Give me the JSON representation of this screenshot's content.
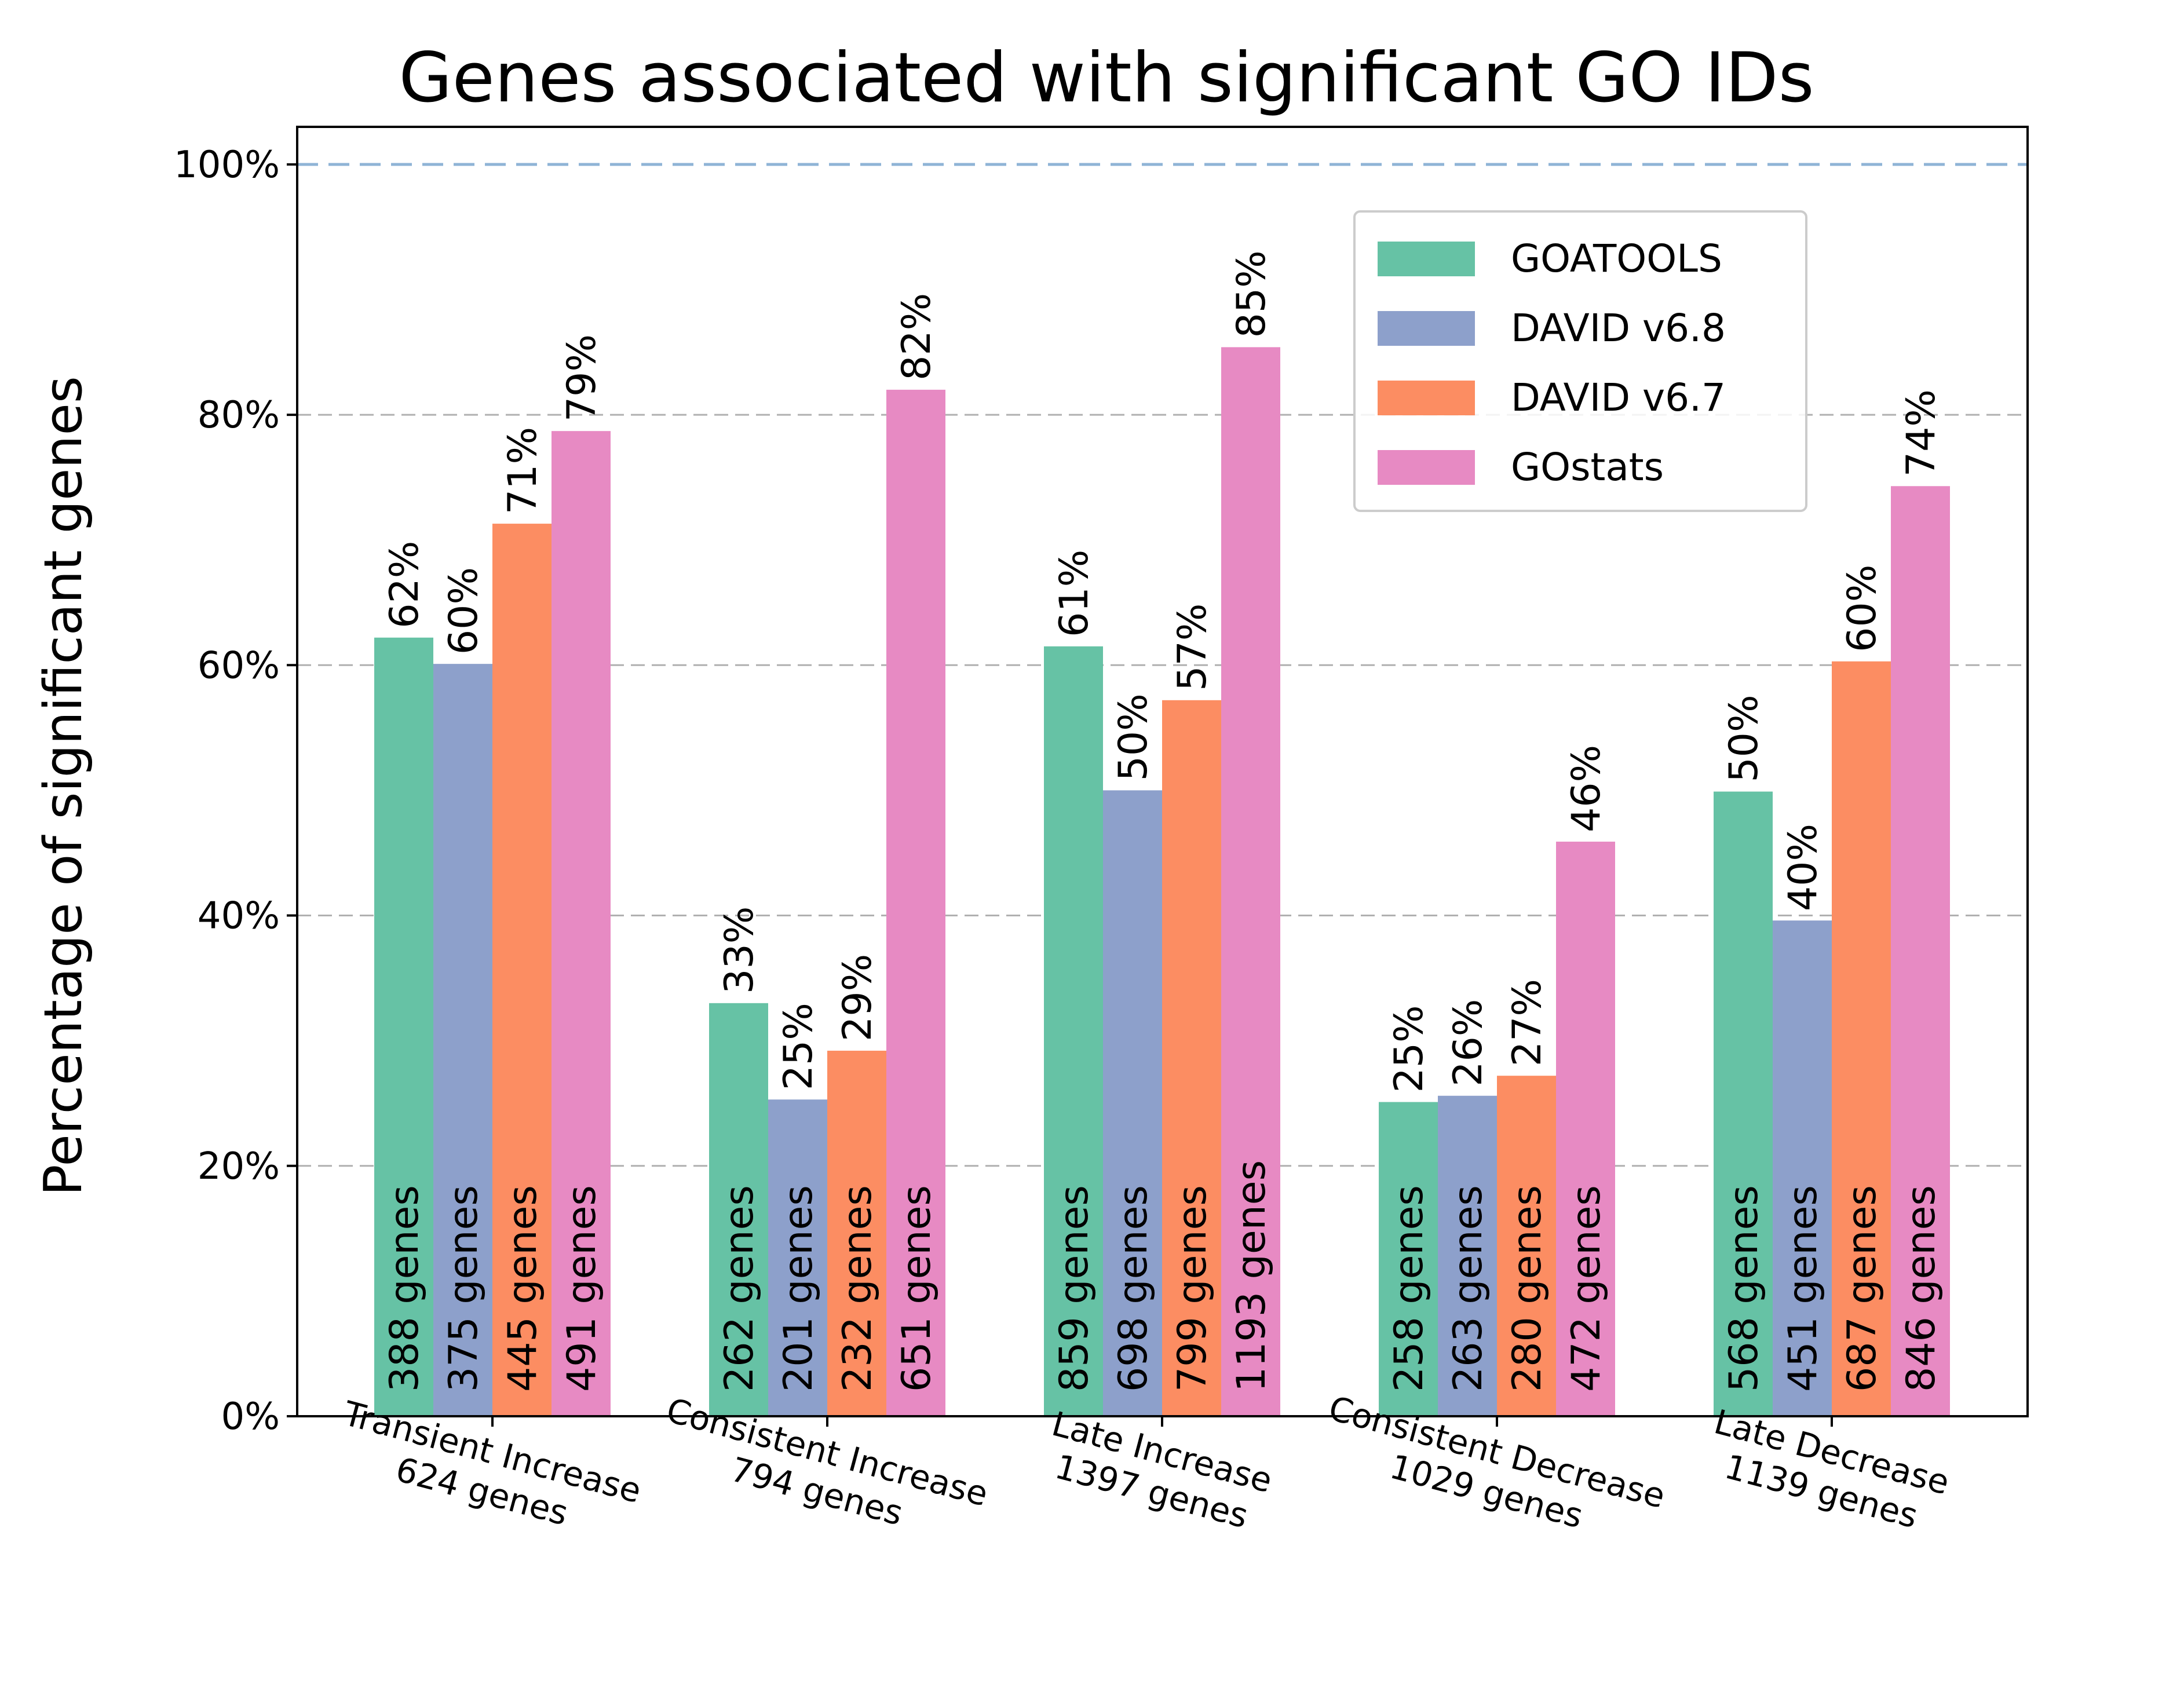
{
  "chart_data": {
    "type": "bar",
    "title": "Genes associated with significant GO IDs",
    "xlabel": "",
    "ylabel": "Percentage of significant genes",
    "ylim": [
      0,
      103
    ],
    "yticks": [
      0,
      20,
      40,
      60,
      80,
      100
    ],
    "ytick_labels": [
      "0%",
      "20%",
      "40%",
      "60%",
      "80%",
      "100%"
    ],
    "reference_line": 100,
    "grid": "horizontal dashed",
    "legend_position": "upper right",
    "categories": [
      {
        "line1": "Transient Increase",
        "line2": "624 genes"
      },
      {
        "line1": "Consistent Increase",
        "line2": "794 genes"
      },
      {
        "line1": "Late Increase",
        "line2": "1397 genes"
      },
      {
        "line1": "Consistent Decrease",
        "line2": "1029 genes"
      },
      {
        "line1": "Late Decrease",
        "line2": "1139 genes"
      }
    ],
    "series": [
      {
        "name": "GOATOOLS",
        "color": "#66c2a5",
        "values": [
          62.2,
          33.0,
          61.5,
          25.1,
          49.9
        ],
        "labels": [
          "62%",
          "33%",
          "61%",
          "25%",
          "50%"
        ],
        "genes": [
          "388 genes",
          "262 genes",
          "859 genes",
          "258 genes",
          "568 genes"
        ]
      },
      {
        "name": "DAVID v6.8",
        "color": "#8da0cb",
        "values": [
          60.1,
          25.3,
          50.0,
          25.6,
          39.6
        ],
        "labels": [
          "60%",
          "25%",
          "50%",
          "26%",
          "40%"
        ],
        "genes": [
          "375 genes",
          "201 genes",
          "698 genes",
          "263 genes",
          "451 genes"
        ]
      },
      {
        "name": "DAVID v6.7",
        "color": "#fc8d62",
        "values": [
          71.3,
          29.2,
          57.2,
          27.2,
          60.3
        ],
        "labels": [
          "71%",
          "29%",
          "57%",
          "27%",
          "60%"
        ],
        "genes": [
          "445 genes",
          "232 genes",
          "799 genes",
          "280 genes",
          "687 genes"
        ]
      },
      {
        "name": "GOstats",
        "color": "#e78ac3",
        "values": [
          78.7,
          82.0,
          85.4,
          45.9,
          74.3
        ],
        "labels": [
          "79%",
          "82%",
          "85%",
          "46%",
          "74%"
        ],
        "genes": [
          "491 genes",
          "651 genes",
          "1193 genes",
          "472 genes",
          "846 genes"
        ]
      }
    ]
  }
}
